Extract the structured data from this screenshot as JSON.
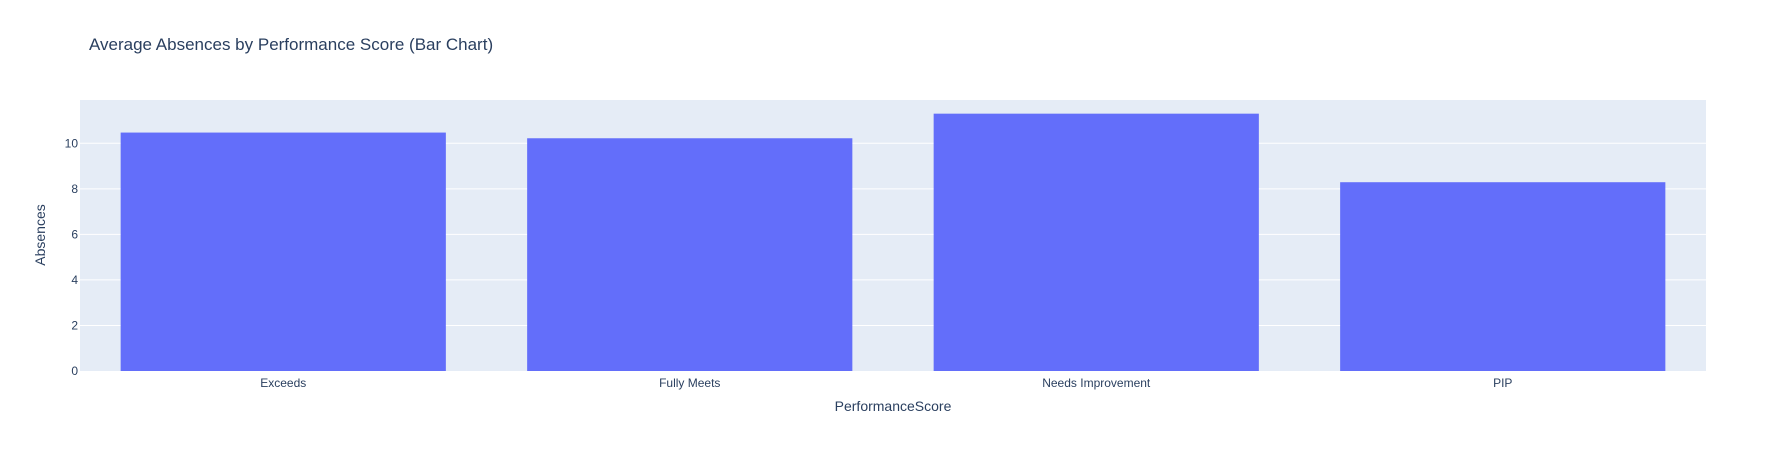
{
  "chart_data": {
    "type": "bar",
    "title": "Average Absences by Performance Score (Bar Chart)",
    "xlabel": "PerformanceScore",
    "ylabel": "Absences",
    "categories": [
      "Exceeds",
      "Fully Meets",
      "Needs Improvement",
      "PIP"
    ],
    "values": [
      10.47,
      10.22,
      11.3,
      8.29
    ],
    "ylim": [
      0,
      11.9
    ],
    "yticks": [
      0,
      2,
      4,
      6,
      8,
      10
    ],
    "grid": true,
    "legend": "none",
    "colors": {
      "bar": "#636efa",
      "plot_background": "#e5ecf6",
      "gridline": "#ffffff",
      "text": "#2a3f5f"
    }
  }
}
